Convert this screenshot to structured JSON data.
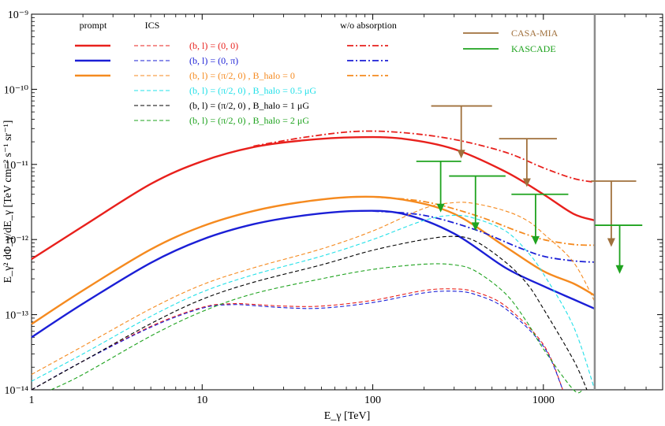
{
  "chart_data": {
    "type": "line",
    "xscale": "log",
    "yscale": "log",
    "xlabel": "E_γ [TeV]",
    "ylabel": "E_γ² dΦ_γ/dE_γ [TeV cm⁻² s⁻¹ sr⁻¹]",
    "xlim": [
      1,
      5000
    ],
    "ylim": [
      1e-14,
      1e-09
    ],
    "x_ticks": [
      1,
      10,
      100,
      1000
    ],
    "x_tick_labels": [
      "1",
      "10",
      "100",
      "1000"
    ],
    "y_ticks": [
      1e-14,
      1e-13,
      1e-12,
      1e-11,
      1e-10,
      1e-09
    ],
    "y_tick_labels": [
      "10⁻¹⁴",
      "10⁻¹³",
      "10⁻¹²",
      "10⁻¹¹",
      "10⁻¹⁰",
      "10⁻⁹"
    ],
    "legend_headers": {
      "prompt": "prompt",
      "ics": "ICS",
      "wo_absorption": "w/o absorption"
    },
    "vertical_line_x": 2000,
    "series": [
      {
        "name": "prompt (b, l) = (0, 0)",
        "color": "#e8201c",
        "style": "solid",
        "width": 2.4,
        "x": [
          1,
          2,
          5,
          10,
          20,
          40,
          80,
          150,
          300,
          600,
          1000,
          1500,
          2000
        ],
        "y": [
          5.5e-13,
          1.5e-12,
          5.5e-12,
          1.1e-11,
          1.7e-11,
          2.1e-11,
          2.3e-11,
          2.2e-11,
          1.6e-11,
          8e-12,
          4e-12,
          2.2e-12,
          1.8e-12
        ]
      },
      {
        "name": "prompt (b, l) = (0, π)",
        "color": "#1b1fd6",
        "style": "solid",
        "width": 2.4,
        "x": [
          1,
          2,
          5,
          10,
          20,
          40,
          80,
          150,
          300,
          600,
          1000,
          1500,
          2000
        ],
        "y": [
          5e-14,
          1.4e-13,
          4.9e-13,
          1e-12,
          1.6e-12,
          2.1e-12,
          2.4e-12,
          2.2e-12,
          1.2e-12,
          4.2e-13,
          2.4e-13,
          1.6e-13,
          1.2e-13
        ]
      },
      {
        "name": "prompt (b, l) = (π/2, 0)",
        "color": "#f58a1f",
        "style": "solid",
        "width": 2.4,
        "x": [
          1,
          2,
          5,
          10,
          20,
          40,
          80,
          150,
          300,
          600,
          1000,
          1500,
          2000
        ],
        "y": [
          7.5e-14,
          2.1e-13,
          7.4e-13,
          1.5e-12,
          2.4e-12,
          3.2e-12,
          3.7e-12,
          3.4e-12,
          2.2e-12,
          8e-13,
          3.8e-13,
          2.6e-13,
          1.8e-13
        ]
      },
      {
        "name": "w/o absorption (b, l) = (0, 0)",
        "color": "#e8201c",
        "style": "dashdot",
        "width": 1.8,
        "x": [
          20,
          40,
          80,
          150,
          300,
          600,
          1000,
          1500,
          2000
        ],
        "y": [
          1.75e-11,
          2.3e-11,
          2.75e-11,
          2.65e-11,
          2.15e-11,
          1.45e-11,
          9e-12,
          6.5e-12,
          5.8e-12
        ]
      },
      {
        "name": "w/o absorption (b, l) = (0, π)",
        "color": "#1b1fd6",
        "style": "dashdot",
        "width": 1.8,
        "x": [
          100,
          200,
          400,
          700,
          1000,
          1500,
          2000
        ],
        "y": [
          2.4e-12,
          2.1e-12,
          1.35e-12,
          8e-13,
          6e-13,
          5.2e-13,
          5e-13
        ]
      },
      {
        "name": "w/o absorption (b, l) = (π/2, 0)",
        "color": "#f58a1f",
        "style": "dashdot",
        "width": 1.8,
        "x": [
          100,
          200,
          400,
          700,
          1000,
          1500,
          2000
        ],
        "y": [
          3.7e-12,
          3.2e-12,
          2.1e-12,
          1.3e-12,
          1e-12,
          8.6e-13,
          8.4e-13
        ]
      },
      {
        "name": "ICS (b, l) = (0, 0)",
        "color": "#e8201c",
        "style": "dashed",
        "width": 1.1,
        "x": [
          1,
          2,
          5,
          10,
          15,
          20,
          30,
          50,
          100,
          200,
          300,
          400,
          600,
          1000,
          1300
        ],
        "y": [
          1e-14,
          2.4e-14,
          7e-14,
          1.25e-13,
          1.4e-13,
          1.37e-13,
          1.3e-13,
          1.3e-13,
          1.55e-13,
          2.1e-13,
          2.2e-13,
          2e-13,
          1.3e-13,
          4e-14,
          1e-14
        ]
      },
      {
        "name": "ICS (b, l) = (0, π)",
        "color": "#1b1fd6",
        "style": "dashed",
        "width": 1.1,
        "x": [
          1,
          2,
          5,
          10,
          15,
          20,
          30,
          50,
          100,
          200,
          300,
          400,
          600,
          1000,
          1300
        ],
        "y": [
          1e-14,
          2.4e-14,
          6.8e-14,
          1.22e-13,
          1.36e-13,
          1.32e-13,
          1.24e-13,
          1.22e-13,
          1.45e-13,
          1.95e-13,
          2.05e-13,
          1.85e-13,
          1.2e-13,
          3.8e-14,
          1e-14
        ]
      },
      {
        "name": "ICS (b, l) = (π/2, 0), B_halo = 0",
        "color": "#f58a1f",
        "style": "dashed",
        "width": 1.1,
        "x": [
          1,
          2,
          5,
          10,
          20,
          50,
          100,
          200,
          300,
          400,
          600,
          800,
          1000,
          1500,
          2000
        ],
        "y": [
          1.6e-14,
          3.8e-14,
          1.2e-13,
          2.5e-13,
          4.2e-13,
          7.5e-13,
          1.3e-12,
          2.6e-12,
          3.1e-12,
          3e-12,
          2.4e-12,
          1.8e-12,
          1.2e-12,
          5e-13,
          1.5e-13
        ]
      },
      {
        "name": "ICS (b, l) = (π/2, 0), B_halo = 0.5 μG",
        "color": "#22e0e8",
        "style": "dashed",
        "width": 1.1,
        "x": [
          1,
          2,
          5,
          10,
          20,
          50,
          100,
          200,
          300,
          400,
          600,
          800,
          1000,
          1500,
          2000
        ],
        "y": [
          1.3e-14,
          3e-14,
          9.5e-14,
          2e-13,
          3.4e-13,
          6e-13,
          1e-12,
          1.8e-12,
          2.1e-12,
          1.9e-12,
          1.3e-12,
          7e-13,
          3.5e-13,
          7e-14,
          1e-14
        ]
      },
      {
        "name": "ICS (b, l) = (π/2, 0), B_halo = 1 μG",
        "color": "#000000",
        "style": "dashed",
        "width": 1.1,
        "x": [
          1,
          2,
          5,
          10,
          20,
          50,
          100,
          200,
          300,
          400,
          600,
          800,
          1000,
          1500,
          1800
        ],
        "y": [
          1e-14,
          2.4e-14,
          7.6e-14,
          1.6e-13,
          2.7e-13,
          4.6e-13,
          7.2e-13,
          1e-12,
          1.1e-12,
          9.5e-13,
          5e-13,
          2.6e-13,
          1.2e-13,
          2.5e-14,
          1e-14
        ]
      },
      {
        "name": "ICS (b, l) = (π/2, 0), B_halo = 2 μG",
        "color": "#1fa31f",
        "style": "dashed",
        "width": 1.1,
        "x": [
          1.3,
          2,
          5,
          10,
          20,
          50,
          100,
          200,
          300,
          400,
          600,
          800,
          1000,
          1500,
          1700
        ],
        "y": [
          1e-14,
          1.6e-14,
          5.2e-14,
          1.1e-13,
          1.9e-13,
          3e-13,
          4e-13,
          4.7e-13,
          4.6e-13,
          3.8e-13,
          1.9e-13,
          8e-14,
          3.5e-14,
          1e-14,
          1e-14
        ]
      }
    ],
    "upper_limits": [
      {
        "experiment": "CASA-MIA",
        "color": "#a0703c",
        "points": [
          {
            "x": 330,
            "y": 6e-11,
            "x_lo": 220,
            "x_hi": 500,
            "y_end": 1.2e-11
          },
          {
            "x": 800,
            "y": 2.2e-11,
            "x_lo": 550,
            "x_hi": 1200,
            "y_end": 5e-12
          },
          {
            "x": 2500,
            "y": 6e-12,
            "x_lo": 1900,
            "x_hi": 3500,
            "y_end": 8e-13
          }
        ]
      },
      {
        "experiment": "KASCADE",
        "color": "#1fa31f",
        "points": [
          {
            "x": 250,
            "y": 1.1e-11,
            "x_lo": 180,
            "x_hi": 330,
            "y_end": 2.3e-12
          },
          {
            "x": 400,
            "y": 7e-12,
            "x_lo": 280,
            "x_hi": 600,
            "y_end": 1.3e-12
          },
          {
            "x": 900,
            "y": 4e-12,
            "x_lo": 650,
            "x_hi": 1400,
            "y_end": 8.5e-13
          },
          {
            "x": 2800,
            "y": 1.55e-12,
            "x_lo": 2000,
            "x_hi": 3800,
            "y_end": 3.5e-13
          }
        ]
      }
    ],
    "legend": {
      "placement": "top-left",
      "rows": [
        {
          "label": "(b, l) = (0, 0)",
          "color": "#e8201c",
          "prompt": true,
          "wo": true
        },
        {
          "label": "(b, l) = (0, π)",
          "color": "#1b1fd6",
          "prompt": true,
          "wo": true
        },
        {
          "label": "(b, l) = (π/2, 0) , B_halo = 0",
          "color": "#f58a1f",
          "prompt": true,
          "wo": true
        },
        {
          "label": "(b, l) = (π/2, 0) , B_halo = 0.5 μG",
          "color": "#22e0e8",
          "prompt": false,
          "wo": false
        },
        {
          "label": "(b, l) = (π/2, 0) , B_halo = 1 μG",
          "color": "#000000",
          "prompt": false,
          "wo": false
        },
        {
          "label": "(b, l) = (π/2, 0) , B_halo = 2 μG",
          "color": "#1fa31f",
          "prompt": false,
          "wo": false
        }
      ],
      "experiments": [
        {
          "label": "CASA-MIA",
          "color": "#a0703c"
        },
        {
          "label": "KASCADE",
          "color": "#1fa31f"
        }
      ]
    }
  }
}
